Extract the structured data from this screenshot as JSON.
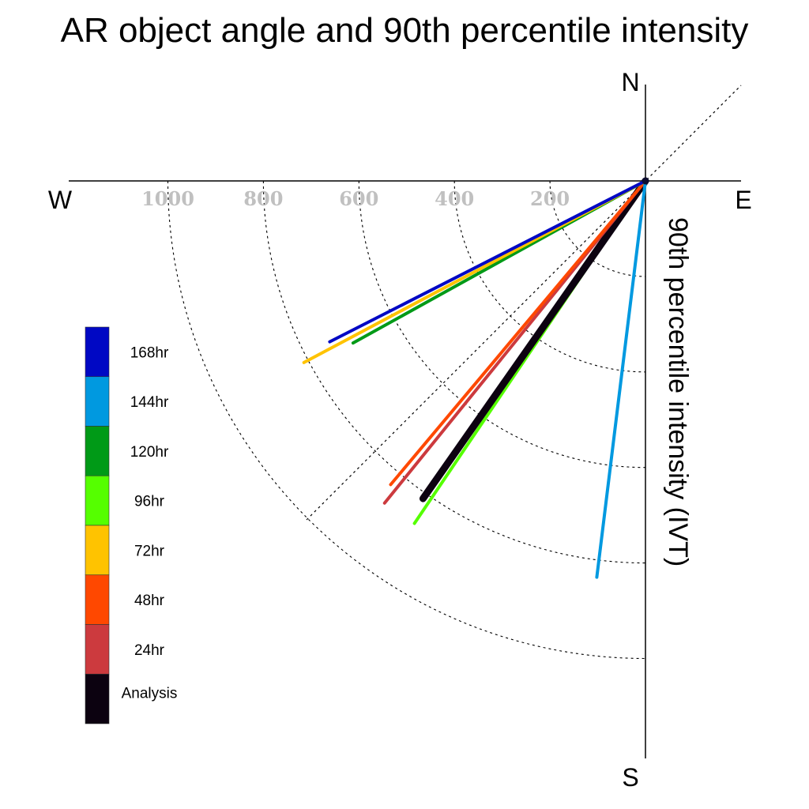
{
  "title": "AR object angle and 90th percentile intensity",
  "chart_data": {
    "type": "polar-line",
    "title": "AR object angle and 90th percentile intensity",
    "ylabel": "90th percentile intensity (IVT)",
    "compass": {
      "north": "N",
      "south": "S",
      "east": "E",
      "west": "W"
    },
    "radial_ticks": [
      200,
      400,
      600,
      800,
      1000
    ],
    "radial_tick_labels": [
      "200",
      "400",
      "600",
      "800",
      "1000"
    ],
    "rmax": 1200,
    "grid": true,
    "legend_position": "left",
    "series": [
      {
        "name": "168hr",
        "color": "#0008c4",
        "angle_deg": 243,
        "intensity": 742
      },
      {
        "name": "144hr",
        "color": "#0099e0",
        "angle_deg": 187,
        "intensity": 836
      },
      {
        "name": "120hr",
        "color": "#009a17",
        "angle_deg": 241,
        "intensity": 700
      },
      {
        "name": "96hr",
        "color": "#55ff00",
        "angle_deg": 214,
        "intensity": 865
      },
      {
        "name": "72hr",
        "color": "#ffc300",
        "angle_deg": 242,
        "intensity": 810
      },
      {
        "name": "48hr",
        "color": "#ff4800",
        "angle_deg": 220,
        "intensity": 830
      },
      {
        "name": "24hr",
        "color": "#cc3a3e",
        "angle_deg": 219,
        "intensity": 868
      },
      {
        "name": "Analysis",
        "color": "#0c0210",
        "angle_deg": 215,
        "intensity": 812
      }
    ],
    "draw_order": [
      "96hr",
      "Analysis",
      "24hr",
      "48hr",
      "144hr",
      "120hr",
      "72hr",
      "168hr"
    ]
  }
}
